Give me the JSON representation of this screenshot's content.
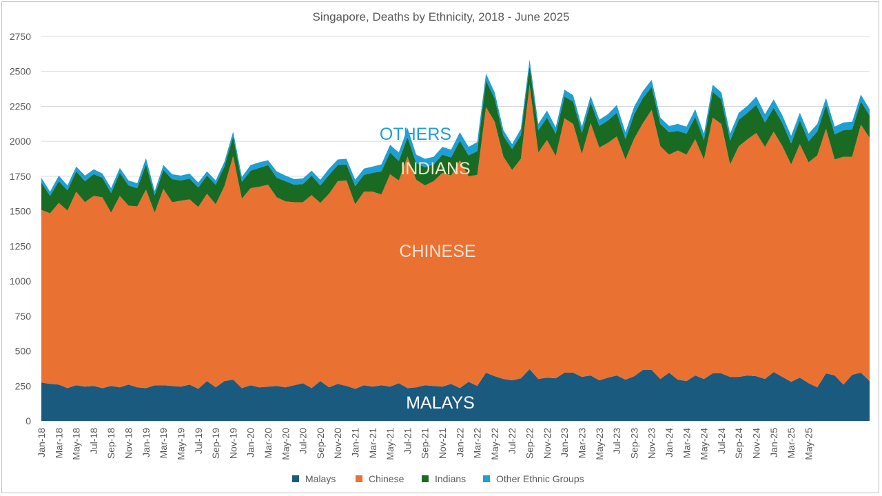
{
  "chart_data": {
    "type": "area",
    "stacked": true,
    "title": "Singapore, Deaths by Ethnicity, 2018 - June 2025",
    "xlabel": "",
    "ylabel": "",
    "ylim": [
      0,
      2750
    ],
    "yticks": [
      0,
      250,
      500,
      750,
      1000,
      1250,
      1500,
      1750,
      2000,
      2250,
      2500,
      2750
    ],
    "grid": true,
    "legend_position": "bottom",
    "x_labels": [
      "Jan-18",
      "Mar-18",
      "May-18",
      "Jul-18",
      "Sep-18",
      "Nov-18",
      "Jan-19",
      "Mar-19",
      "May-19",
      "Jul-19",
      "Sep-19",
      "Nov-19",
      "Jan-20",
      "Mar-20",
      "May-20",
      "Jul-20",
      "Sep-20",
      "Nov-20",
      "Jan-21",
      "Mar-21",
      "May-21",
      "Jul-21",
      "Sep-21",
      "Nov-21",
      "Jan-22",
      "Mar-22",
      "May-22",
      "Jul-22",
      "Sep-22",
      "Nov-22",
      "Jan-23",
      "Mar-23",
      "May-23",
      "Jul-23",
      "Sep-23",
      "Nov-23",
      "Jan-24",
      "Mar-24",
      "May-24",
      "Jul-24",
      "Sep-24",
      "Nov-24",
      "Jan-25",
      "Mar-25",
      "May-25"
    ],
    "series": [
      {
        "name": "Malays",
        "color": "#1b5a7f",
        "values": [
          275,
          265,
          260,
          235,
          255,
          245,
          250,
          235,
          250,
          240,
          260,
          240,
          235,
          255,
          255,
          250,
          245,
          260,
          230,
          285,
          240,
          285,
          295,
          235,
          255,
          240,
          245,
          250,
          240,
          255,
          270,
          235,
          285,
          240,
          265,
          250,
          230,
          255,
          245,
          255,
          245,
          270,
          235,
          240,
          255,
          250,
          245,
          265,
          235,
          280,
          250,
          345,
          320,
          300,
          290,
          305,
          370,
          300,
          310,
          305,
          345,
          345,
          315,
          325,
          290,
          310,
          325,
          295,
          320,
          365,
          365,
          300,
          345,
          295,
          285,
          325,
          300,
          340,
          340,
          315,
          315,
          325,
          320,
          300,
          350,
          315,
          280,
          310,
          270,
          240,
          340,
          325,
          260,
          330,
          345,
          285
        ]
      },
      {
        "name": "Chinese",
        "color": "#e97132",
        "values": [
          1235,
          1220,
          1300,
          1270,
          1385,
          1320,
          1360,
          1365,
          1240,
          1370,
          1280,
          1295,
          1420,
          1235,
          1405,
          1315,
          1330,
          1325,
          1300,
          1340,
          1310,
          1395,
          1600,
          1355,
          1410,
          1435,
          1445,
          1350,
          1330,
          1310,
          1295,
          1380,
          1275,
          1385,
          1450,
          1470,
          1320,
          1385,
          1395,
          1365,
          1520,
          1450,
          1655,
          1485,
          1430,
          1465,
          1530,
          1490,
          1630,
          1470,
          1510,
          1900,
          1820,
          1590,
          1505,
          1570,
          2035,
          1620,
          1700,
          1590,
          1820,
          1780,
          1595,
          1805,
          1665,
          1680,
          1710,
          1575,
          1700,
          1765,
          1860,
          1665,
          1560,
          1640,
          1620,
          1690,
          1570,
          1830,
          1785,
          1520,
          1650,
          1690,
          1740,
          1660,
          1720,
          1650,
          1555,
          1670,
          1580,
          1660,
          1750,
          1545,
          1630,
          1560,
          1775,
          1740
        ]
      },
      {
        "name": "Indians",
        "color": "#196b24",
        "values": [
          195,
          125,
          155,
          145,
          145,
          150,
          155,
          140,
          140,
          165,
          145,
          130,
          180,
          125,
          135,
          165,
          145,
          150,
          140,
          130,
          140,
          140,
          140,
          120,
          125,
          135,
          140,
          140,
          145,
          125,
          130,
          140,
          125,
          135,
          115,
          115,
          130,
          120,
          135,
          165,
          155,
          140,
          140,
          120,
          130,
          120,
          130,
          130,
          140,
          150,
          170,
          190,
          165,
          150,
          150,
          170,
          135,
          160,
          160,
          160,
          155,
          160,
          150,
          150,
          155,
          160,
          170,
          145,
          175,
          180,
          165,
          160,
          160,
          140,
          150,
          160,
          140,
          185,
          175,
          170,
          190,
          190,
          200,
          175,
          170,
          165,
          150,
          170,
          150,
          170,
          170,
          180,
          190,
          195,
          165,
          160
        ]
      },
      {
        "name": "Other Ethnic Groups",
        "color": "#1e9fd6",
        "values": [
          35,
          30,
          40,
          35,
          35,
          40,
          35,
          30,
          35,
          35,
          35,
          35,
          45,
          30,
          35,
          35,
          35,
          35,
          35,
          30,
          30,
          35,
          35,
          35,
          40,
          40,
          35,
          45,
          40,
          40,
          40,
          35,
          40,
          45,
          40,
          40,
          45,
          45,
          45,
          50,
          55,
          60,
          65,
          60,
          60,
          55,
          55,
          55,
          60,
          60,
          65,
          50,
          45,
          40,
          35,
          45,
          45,
          45,
          50,
          45,
          50,
          45,
          45,
          45,
          45,
          45,
          55,
          50,
          55,
          50,
          50,
          45,
          45,
          50,
          50,
          55,
          45,
          50,
          50,
          50,
          50,
          50,
          60,
          60,
          60,
          55,
          55,
          55,
          55,
          55,
          50,
          55,
          55,
          55,
          50,
          45
        ]
      }
    ]
  },
  "annotations": {
    "others": "OTHERS",
    "indians": "INDIANS",
    "chinese": "CHINESE",
    "malays": "MALAYS"
  }
}
